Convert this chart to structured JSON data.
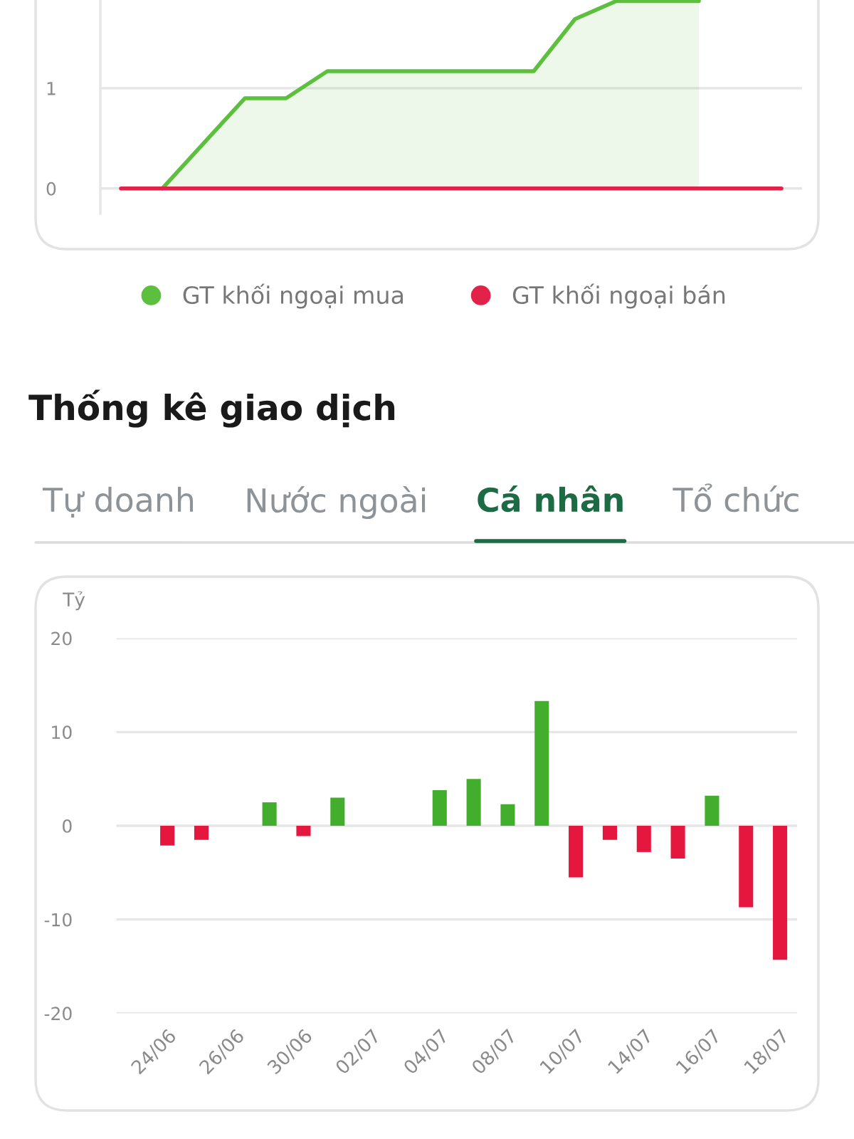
{
  "chart_data": [
    {
      "type": "line",
      "categories": [
        null,
        null,
        null,
        null,
        null,
        null,
        null,
        null,
        null,
        null,
        null,
        null,
        null,
        null,
        null,
        null,
        null
      ],
      "ylim": [
        -0.25,
        1.88
      ],
      "yticks": [
        0,
        1
      ],
      "grid": "y",
      "legend": "bottom",
      "series": [
        {
          "name": "GT khối ngoại mua",
          "type": "area",
          "color": "#5cbf3e",
          "values": [
            null,
            0,
            0.45,
            0.9,
            0.9,
            1.17,
            1.17,
            1.17,
            1.17,
            1.17,
            1.17,
            1.69,
            1.87,
            1.87,
            1.87,
            null,
            null
          ]
        },
        {
          "name": "GT khối ngoại bán",
          "type": "line",
          "color": "#e3224a",
          "values": [
            0,
            0,
            0,
            0,
            0,
            0,
            0,
            0,
            0,
            0,
            0,
            0,
            0,
            0,
            0,
            0,
            0
          ]
        }
      ]
    },
    {
      "type": "bar",
      "title": "Thống kê giao dịch",
      "annotations": [
        "Tự doanh",
        "Nước ngoài",
        "Cá nhân",
        "Tổ chức"
      ],
      "ylabel": "Tỷ",
      "categories": [
        "24/06",
        null,
        "26/06",
        null,
        "30/06",
        null,
        "02/07",
        null,
        "04/07",
        null,
        "08/07",
        null,
        "10/07",
        null,
        "14/07",
        null,
        "16/07",
        null,
        "18/07"
      ],
      "values": [
        -2.1,
        -1.5,
        null,
        2.5,
        -1.1,
        3.0,
        null,
        null,
        3.8,
        5.0,
        2.3,
        13.3,
        -5.5,
        -1.5,
        -2.8,
        -3.5,
        3.2,
        -8.7,
        -14.3
      ],
      "colors": [
        "#e5173f",
        "#e5173f",
        null,
        "#43ad2d",
        "#e5173f",
        "#43ad2d",
        null,
        null,
        "#43ad2d",
        "#43ad2d",
        "#43ad2d",
        "#43ad2d",
        "#e5173f",
        "#e5173f",
        "#e5173f",
        "#e5173f",
        "#43ad2d",
        "#e5173f",
        "#e5173f"
      ],
      "ylim": [
        -20,
        20
      ],
      "yticks": [
        -20,
        -10,
        0,
        10,
        20
      ],
      "grid": "y"
    }
  ]
}
